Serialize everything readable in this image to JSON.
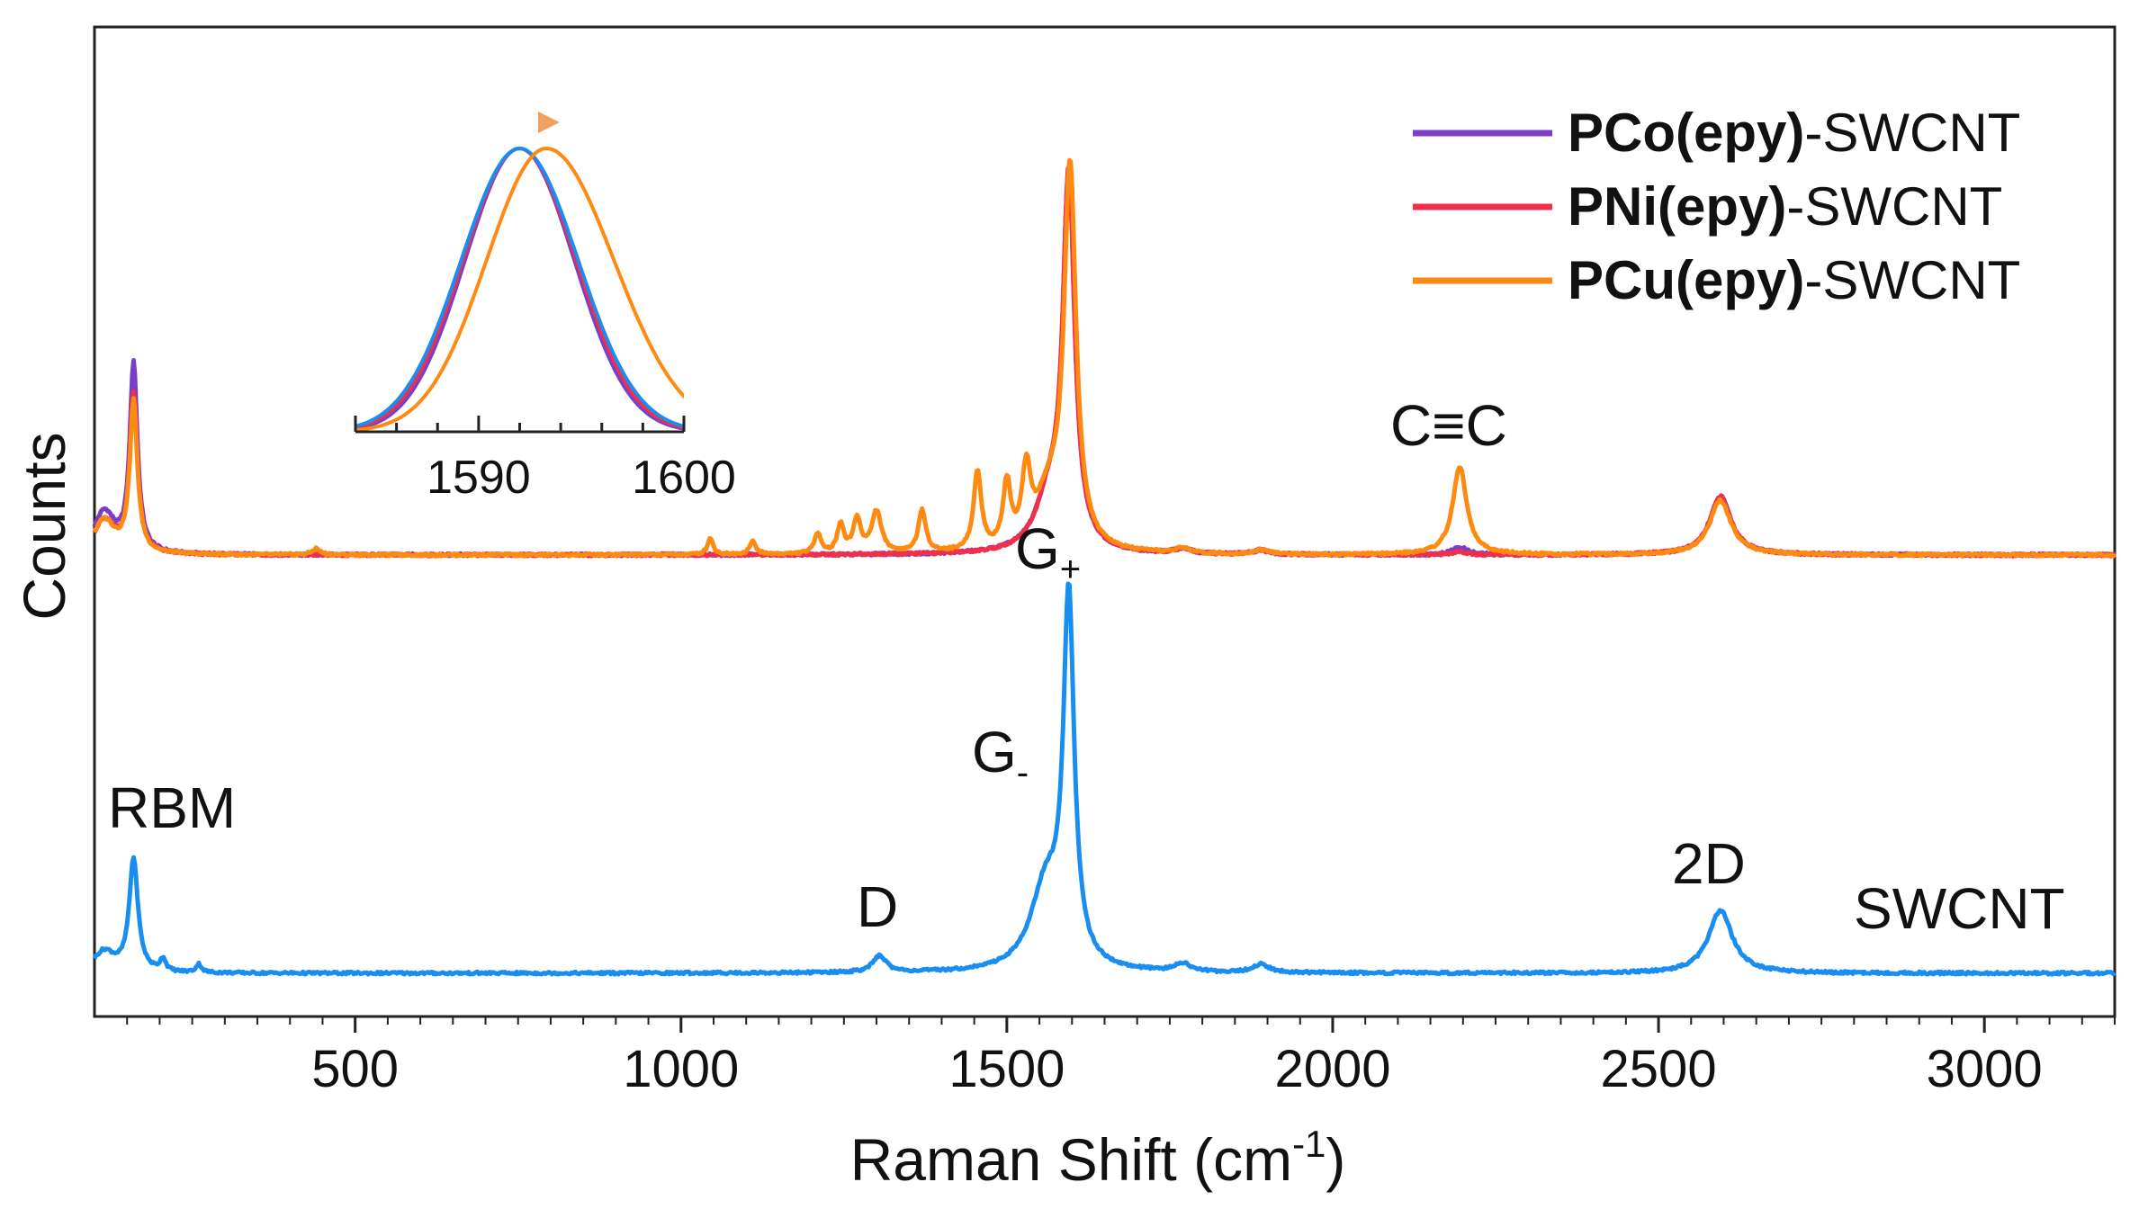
{
  "chart_data": {
    "type": "line",
    "xlabel_main": "Raman Shift (cm",
    "xlabel_sup": "-1",
    "xlabel_close": ")",
    "ylabel": "Counts",
    "xlim": [
      100,
      3200
    ],
    "x_ticks": [
      500,
      1000,
      1500,
      2000,
      2500,
      3000
    ],
    "y_ticks_shown": false,
    "grid": false,
    "legend_position": "top-right",
    "colors": {
      "PCo": "#7a3fc7",
      "PNi": "#f0304a",
      "PCu": "#ff8a12",
      "SWCNT": "#1a8ef0"
    },
    "legend": [
      {
        "bold": "PCo(epy)",
        "rest": "-SWCNT",
        "color": "#7a3fc7"
      },
      {
        "bold": "PNi(epy)",
        "rest": "-SWCNT",
        "color": "#f0304a"
      },
      {
        "bold": "PCu(epy)",
        "rest": "-SWCNT",
        "color": "#ff8a12"
      }
    ],
    "series": [
      {
        "name": "PCo(epy)-SWCNT",
        "color": "#7a3fc7",
        "baseline": 1.0,
        "peaks": [
          [
            160,
            0.45,
            7
          ],
          [
            1595,
            0.88,
            11
          ],
          [
            1565,
            0.12,
            25
          ],
          [
            2195,
            0.018,
            14
          ],
          [
            2595,
            0.14,
            20
          ],
          [
            1770,
            0.012,
            14
          ],
          [
            1890,
            0.01,
            14
          ],
          [
            115,
            0.1,
            20
          ]
        ]
      },
      {
        "name": "PNi(epy)-SWCNT",
        "color": "#f0304a",
        "baseline": 1.0,
        "peaks": [
          [
            160,
            0.38,
            7
          ],
          [
            1595,
            0.88,
            11
          ],
          [
            1565,
            0.12,
            25
          ],
          [
            2195,
            0.006,
            14
          ],
          [
            2595,
            0.14,
            20
          ],
          [
            1770,
            0.012,
            14
          ],
          [
            1890,
            0.01,
            14
          ],
          [
            115,
            0.08,
            20
          ]
        ]
      },
      {
        "name": "PCu(epy)-SWCNT",
        "color": "#ff8a12",
        "baseline": 1.0,
        "peaks": [
          [
            160,
            0.36,
            7
          ],
          [
            1597,
            0.9,
            11
          ],
          [
            1565,
            0.12,
            25
          ],
          [
            1370,
            0.1,
            7
          ],
          [
            1455,
            0.19,
            7
          ],
          [
            1500,
            0.15,
            7
          ],
          [
            1530,
            0.17,
            8
          ],
          [
            1300,
            0.1,
            9
          ],
          [
            1270,
            0.08,
            7
          ],
          [
            1245,
            0.07,
            6
          ],
          [
            1210,
            0.05,
            6
          ],
          [
            1045,
            0.04,
            5
          ],
          [
            1110,
            0.03,
            6
          ],
          [
            440,
            0.015,
            7
          ],
          [
            2195,
            0.21,
            13
          ],
          [
            2595,
            0.13,
            20
          ],
          [
            1770,
            0.012,
            14
          ],
          [
            1890,
            0.01,
            14
          ],
          [
            115,
            0.08,
            20
          ]
        ]
      },
      {
        "name": "SWCNT",
        "color": "#1a8ef0",
        "baseline": 0.0,
        "peaks": [
          [
            160,
            0.27,
            8
          ],
          [
            1595,
            0.86,
            10
          ],
          [
            1560,
            0.2,
            28
          ],
          [
            1305,
            0.04,
            12
          ],
          [
            2595,
            0.15,
            22
          ],
          [
            1770,
            0.02,
            14
          ],
          [
            1890,
            0.02,
            14
          ],
          [
            205,
            0.03,
            5
          ],
          [
            260,
            0.02,
            5
          ],
          [
            115,
            0.05,
            20
          ]
        ]
      }
    ],
    "annotations": [
      {
        "text": "RBM",
        "x": 160
      },
      {
        "text": "D",
        "x": 1305
      },
      {
        "text": "G",
        "sub": "-",
        "x": 1555
      },
      {
        "text": "G",
        "sub": "+",
        "x": 1595
      },
      {
        "text": "2D",
        "x": 2600
      },
      {
        "text": "C≡C",
        "x": 2195
      },
      {
        "text": "SWCNT",
        "x": 2990
      }
    ],
    "inset": {
      "xlim": [
        1584,
        1600
      ],
      "x_ticks": [
        1590,
        1600
      ],
      "peak_center": 1592,
      "peak_shift_center": 1593.3,
      "series_colors": [
        "#7a3fc7",
        "#f0304a",
        "#1a8ef0",
        "#ff8a12"
      ]
    }
  }
}
